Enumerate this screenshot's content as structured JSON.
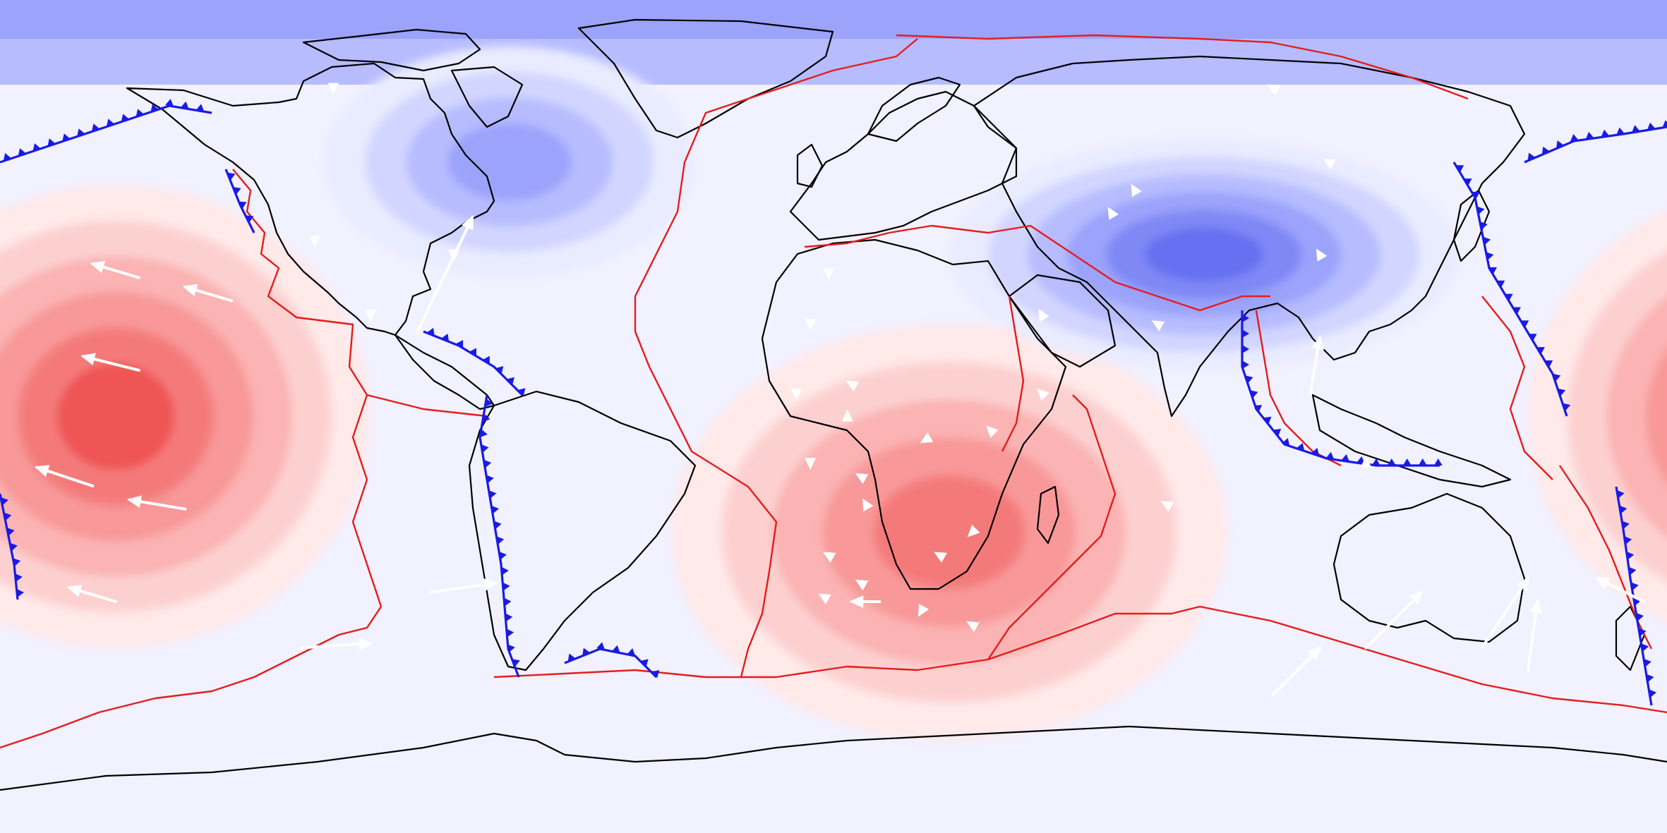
{
  "map": {
    "projection": "equirectangular",
    "extent": {
      "lon": [
        -180,
        180
      ],
      "lat": [
        -90,
        90
      ]
    },
    "color_scheme": {
      "positive_levels": [
        "#ffe9e9",
        "#fdd0d0",
        "#fbb3b3",
        "#f89898",
        "#f47a7a",
        "#ef5555"
      ],
      "negative_levels": [
        "#e9ebff",
        "#d1d5ff",
        "#b6bcff",
        "#9ba3fb",
        "#7f88f5",
        "#6670f0"
      ],
      "coastline": "#000000",
      "plate_boundary": "#e51c1c",
      "subduction_zone": "#1a1ae6",
      "velocity_arrow": "#ffffff"
    },
    "layers": {
      "field_contours": true,
      "coastlines": true,
      "plate_boundaries": true,
      "subduction_zones": true,
      "velocity_vectors": true,
      "legend": false,
      "title": false
    },
    "anomalies": [
      {
        "sign": "positive",
        "name": "",
        "center_lon": -155,
        "center_lat": 0,
        "radius_lon": 55,
        "radius_lat": 50,
        "peak_level": 6
      },
      {
        "sign": "positive",
        "name": "",
        "center_lon": 25,
        "center_lat": -25,
        "radius_lon": 60,
        "radius_lat": 45,
        "peak_level": 5
      },
      {
        "sign": "negative",
        "name": "",
        "center_lon": 80,
        "center_lat": 35,
        "radius_lon": 55,
        "radius_lat": 25,
        "peak_level": 6
      },
      {
        "sign": "negative",
        "name": "",
        "center_lon": -70,
        "center_lat": 55,
        "radius_lon": 40,
        "radius_lat": 25,
        "peak_level": 4
      }
    ],
    "velocity_vectors": [
      {
        "lon": -150,
        "lat": 30,
        "dlon": -10,
        "dlat": 3
      },
      {
        "lon": -130,
        "lat": 25,
        "dlon": -10,
        "dlat": 3
      },
      {
        "lon": -150,
        "lat": 10,
        "dlon": -12,
        "dlat": 3
      },
      {
        "lon": -160,
        "lat": -15,
        "dlon": -12,
        "dlat": 4
      },
      {
        "lon": -140,
        "lat": -20,
        "dlon": -12,
        "dlat": 2
      },
      {
        "lon": -155,
        "lat": -40,
        "dlon": -10,
        "dlat": 3
      },
      {
        "lon": -115,
        "lat": -50,
        "dlon": 15,
        "dlat": 1
      },
      {
        "lon": -90,
        "lat": 18,
        "dlon": 12,
        "dlat": 25
      },
      {
        "lon": -87,
        "lat": -38,
        "dlon": 14,
        "dlat": 2
      },
      {
        "lon": 10,
        "lat": -40,
        "dlon": -6,
        "dlat": 0
      },
      {
        "lon": 115,
        "lat": -50,
        "dlon": 12,
        "dlat": 12
      },
      {
        "lon": 140,
        "lat": -50,
        "dlon": 10,
        "dlat": 15
      },
      {
        "lon": 150,
        "lat": -55,
        "dlon": 2,
        "dlat": 15
      },
      {
        "lon": 175,
        "lat": -40,
        "dlon": -10,
        "dlat": 5
      },
      {
        "lon": 95,
        "lat": -60,
        "dlon": 10,
        "dlat": 10
      },
      {
        "lon": 103,
        "lat": 5,
        "dlon": 2,
        "dlat": 12
      }
    ],
    "arrowheads": [
      {
        "lon": -108,
        "lat": 71,
        "rot": 180
      },
      {
        "lon": -112,
        "lat": 38,
        "rot": 180
      },
      {
        "lon": -100,
        "lat": 22,
        "rot": 180
      },
      {
        "lon": -82,
        "lat": 35,
        "rot": 180
      },
      {
        "lon": -8,
        "lat": 5,
        "rot": 180
      },
      {
        "lon": -5,
        "lat": 20,
        "rot": 180
      },
      {
        "lon": -5,
        "lat": -10,
        "rot": 180
      },
      {
        "lon": -1,
        "lat": 31,
        "rot": 180
      },
      {
        "lon": 3,
        "lat": 0,
        "rot": 0
      },
      {
        "lon": 30,
        "lat": -25,
        "rot": 225
      },
      {
        "lon": 30,
        "lat": -45,
        "rot": 300
      },
      {
        "lon": 34,
        "lat": -3,
        "rot": 315
      },
      {
        "lon": 45,
        "lat": 5,
        "rot": 315
      },
      {
        "lon": 45,
        "lat": 22,
        "rot": 330
      },
      {
        "lon": 70,
        "lat": 20,
        "rot": 300
      },
      {
        "lon": 72,
        "lat": -19,
        "rot": 300
      },
      {
        "lon": 95,
        "lat": 71,
        "rot": 300
      },
      {
        "lon": 107,
        "lat": 55,
        "rot": 300
      },
      {
        "lon": 115,
        "lat": -10,
        "rot": 0
      },
      {
        "lon": -1,
        "lat": -30,
        "rot": 300
      },
      {
        "lon": -2,
        "lat": -39,
        "rot": 300
      },
      {
        "lon": 4,
        "lat": 7,
        "rot": 300
      },
      {
        "lon": 6,
        "lat": -13,
        "rot": 300
      },
      {
        "lon": 6,
        "lat": -36,
        "rot": 300
      },
      {
        "lon": 7,
        "lat": -19,
        "rot": 330
      },
      {
        "lon": 20,
        "lat": -5,
        "rot": 240
      },
      {
        "lon": 23,
        "lat": -30,
        "rot": 300
      },
      {
        "lon": 19,
        "lat": -42,
        "rot": 210
      },
      {
        "lon": 60,
        "lat": 44,
        "rot": 330
      },
      {
        "lon": 65,
        "lat": 49,
        "rot": 330
      },
      {
        "lon": 105,
        "lat": 35,
        "rot": 330
      }
    ]
  }
}
